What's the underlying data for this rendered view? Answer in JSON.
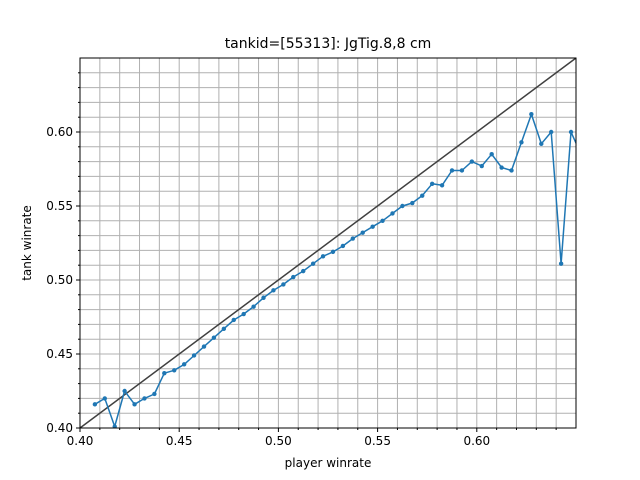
{
  "chart_data": {
    "type": "line",
    "title": "tankid=[55313]: JgTig.8,8 cm",
    "xlabel": "player winrate",
    "ylabel": "tank winrate",
    "xlim": [
      0.4,
      0.65
    ],
    "ylim": [
      0.4,
      0.65
    ],
    "grid": true,
    "x_ticks": [
      "0.40",
      "0.45",
      "0.50",
      "0.55",
      "0.60"
    ],
    "y_ticks": [
      "0.40",
      "0.45",
      "0.50",
      "0.55",
      "0.60"
    ],
    "reference_line": {
      "from": [
        0.4,
        0.4
      ],
      "to": [
        0.65,
        0.65
      ],
      "color": "#404040"
    },
    "series": [
      {
        "color": "#1f77b4",
        "x": [
          0.4075,
          0.4125,
          0.4175,
          0.4225,
          0.4275,
          0.4325,
          0.4375,
          0.4425,
          0.4475,
          0.4525,
          0.4575,
          0.4625,
          0.4675,
          0.4725,
          0.4775,
          0.4825,
          0.4875,
          0.4925,
          0.4975,
          0.5025,
          0.5075,
          0.5125,
          0.5175,
          0.5225,
          0.5275,
          0.5325,
          0.5375,
          0.5425,
          0.5475,
          0.5525,
          0.5575,
          0.5625,
          0.5675,
          0.5725,
          0.5775,
          0.5825,
          0.5875,
          0.5925,
          0.5975,
          0.6025,
          0.6075,
          0.6125,
          0.6175,
          0.6225,
          0.6275,
          0.6325,
          0.6375,
          0.6425,
          0.6475,
          0.6525
        ],
        "y": [
          0.416,
          0.42,
          0.401,
          0.425,
          0.416,
          0.42,
          0.423,
          0.437,
          0.439,
          0.443,
          0.449,
          0.455,
          0.461,
          0.467,
          0.473,
          0.477,
          0.482,
          0.488,
          0.493,
          0.497,
          0.502,
          0.506,
          0.511,
          0.516,
          0.519,
          0.523,
          0.528,
          0.532,
          0.536,
          0.54,
          0.545,
          0.55,
          0.552,
          0.557,
          0.565,
          0.564,
          0.574,
          0.574,
          0.58,
          0.577,
          0.585,
          0.576,
          0.574,
          0.593,
          0.612,
          0.592,
          0.6,
          0.511,
          0.6,
          0.585
        ]
      }
    ]
  }
}
